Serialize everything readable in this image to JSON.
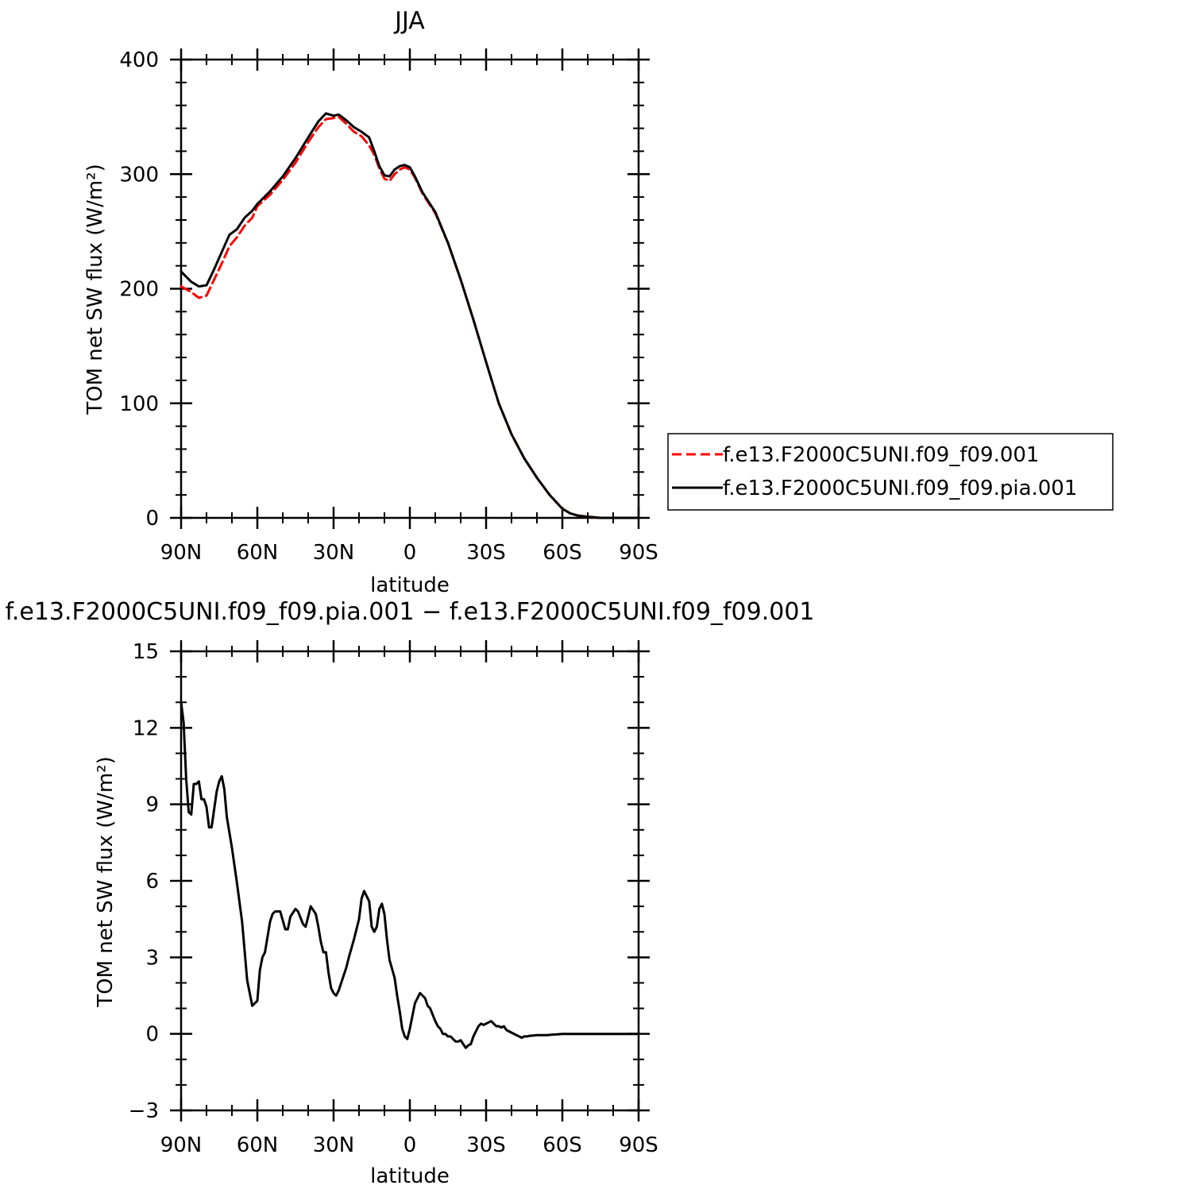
{
  "chart_data": [
    {
      "type": "line",
      "title": "JJA",
      "xlabel": "latitude",
      "ylabel": "TOM net SW flux (W/m²)",
      "x_ticks": [
        "90N",
        "60N",
        "30N",
        "0",
        "30S",
        "60S",
        "90S"
      ],
      "x_tick_values": [
        90,
        60,
        30,
        0,
        -30,
        -60,
        -90
      ],
      "xlim": [
        90,
        -90
      ],
      "ylim": [
        0,
        400
      ],
      "y_ticks": [
        "0",
        "100",
        "200",
        "300",
        "400"
      ],
      "y_tick_values": [
        0,
        100,
        200,
        300,
        400
      ],
      "legend_position": "right",
      "series": [
        {
          "name": "f.e13.F2000C5UNI.f09_f09.001",
          "color": "#ff0000",
          "dash": "dashed",
          "x": [
            90,
            86,
            83,
            80,
            77,
            74,
            71,
            68,
            65,
            62,
            60,
            55,
            50,
            45,
            40,
            36,
            33,
            30,
            28,
            25,
            22,
            19,
            16,
            14,
            12,
            10,
            8,
            6,
            4,
            2,
            0,
            -2,
            -5,
            -10,
            -15,
            -20,
            -25,
            -30,
            -35,
            -40,
            -45,
            -50,
            -55,
            -60,
            -63,
            -66,
            -70,
            -75,
            -80,
            -90
          ],
          "y": [
            202,
            197,
            192,
            194,
            208,
            222,
            237,
            245,
            255,
            262,
            272,
            282,
            295,
            310,
            328,
            341,
            348,
            349,
            350,
            344,
            337,
            333,
            325,
            317,
            305,
            296,
            294,
            300,
            304,
            306,
            304,
            297,
            283,
            266,
            240,
            208,
            173,
            136,
            100,
            73,
            52,
            35,
            20,
            8,
            4,
            2,
            1,
            0,
            0,
            0
          ]
        },
        {
          "name": "f.e13.F2000C5UNI.f09_f09.pia.001",
          "color": "#000000",
          "dash": "solid",
          "x": [
            90,
            86,
            83,
            80,
            77,
            74,
            71,
            68,
            65,
            62,
            60,
            55,
            50,
            45,
            40,
            36,
            33,
            30,
            28,
            25,
            22,
            19,
            16,
            14,
            12,
            10,
            8,
            6,
            4,
            2,
            0,
            -2,
            -5,
            -10,
            -15,
            -20,
            -25,
            -30,
            -35,
            -40,
            -45,
            -50,
            -55,
            -60,
            -63,
            -66,
            -70,
            -75,
            -80,
            -90
          ],
          "y": [
            215,
            206,
            202,
            203,
            217,
            232,
            247,
            252,
            262,
            268,
            274,
            285,
            298,
            314,
            332,
            346,
            353,
            351,
            352,
            347,
            341,
            337,
            332,
            320,
            307,
            299,
            298,
            304,
            307,
            308,
            306,
            298,
            284,
            267,
            240,
            208,
            173,
            136,
            100,
            73,
            52,
            35,
            20,
            8,
            4,
            2,
            1,
            0,
            0,
            0
          ]
        }
      ]
    },
    {
      "type": "line",
      "title": "f.e13.F2000C5UNI.f09_f09.pia.001 − f.e13.F2000C5UNI.f09_f09.001",
      "xlabel": "latitude",
      "ylabel": "TOM net SW flux (W/m²)",
      "x_ticks": [
        "90N",
        "60N",
        "30N",
        "0",
        "30S",
        "60S",
        "90S"
      ],
      "x_tick_values": [
        90,
        60,
        30,
        0,
        -30,
        -60,
        -90
      ],
      "xlim": [
        90,
        -90
      ],
      "ylim": [
        -3,
        15
      ],
      "y_ticks": [
        "−3",
        "0",
        "3",
        "6",
        "9",
        "12",
        "15"
      ],
      "y_tick_values": [
        -3,
        0,
        3,
        6,
        9,
        12,
        15
      ],
      "series": [
        {
          "color": "#000000",
          "x": [
            90,
            89,
            88,
            87,
            86,
            85,
            84,
            83,
            82,
            81,
            80,
            79,
            78,
            77,
            76,
            75,
            74,
            73,
            72,
            71,
            70,
            68,
            66,
            64,
            62,
            60,
            59,
            58,
            57,
            56,
            55,
            54,
            53,
            51,
            49,
            48,
            47,
            45,
            44,
            42,
            41,
            39,
            37,
            36,
            35,
            34,
            33,
            32,
            31,
            30,
            29,
            28,
            27,
            26,
            25,
            24,
            22,
            20,
            19,
            18,
            16,
            15,
            14,
            13,
            12,
            11,
            10,
            9,
            8,
            6,
            5,
            4,
            3,
            2,
            1,
            0,
            -1,
            -2,
            -3,
            -4,
            -5,
            -6,
            -7,
            -8,
            -10,
            -11,
            -12,
            -13,
            -14,
            -15,
            -16,
            -17,
            -18,
            -19,
            -20,
            -21,
            -22,
            -23,
            -24,
            -25,
            -26,
            -27,
            -28,
            -29,
            -30,
            -31,
            -32,
            -33,
            -34,
            -35,
            -36,
            -37,
            -38,
            -39,
            -40,
            -41,
            -42,
            -43,
            -44,
            -45,
            -46,
            -47,
            -48,
            -49,
            -50,
            -52,
            -54,
            -56,
            -58,
            -60,
            -63,
            -66,
            -70,
            -75,
            -80,
            -85,
            -90
          ],
          "y": [
            13.0,
            12.2,
            10.0,
            8.7,
            8.6,
            9.8,
            9.8,
            9.9,
            9.2,
            9.2,
            8.9,
            8.1,
            8.1,
            8.8,
            9.5,
            9.9,
            10.1,
            9.6,
            8.5,
            7.9,
            7.3,
            5.9,
            4.4,
            2.1,
            1.1,
            1.3,
            2.5,
            3.0,
            3.2,
            3.8,
            4.4,
            4.7,
            4.8,
            4.8,
            4.1,
            4.1,
            4.6,
            4.9,
            4.8,
            4.3,
            4.2,
            5.0,
            4.7,
            4.2,
            3.6,
            3.2,
            3.2,
            2.4,
            1.8,
            1.6,
            1.5,
            1.7,
            2.0,
            2.3,
            2.6,
            3.0,
            3.7,
            4.5,
            5.3,
            5.6,
            5.2,
            4.2,
            4.0,
            4.2,
            4.9,
            5.1,
            4.7,
            3.7,
            2.9,
            2.2,
            1.5,
            0.9,
            0.2,
            -0.1,
            -0.2,
            0.2,
            0.7,
            1.2,
            1.4,
            1.6,
            1.5,
            1.4,
            1.1,
            1.0,
            0.5,
            0.3,
            0.2,
            0.0,
            0.0,
            -0.1,
            -0.1,
            -0.2,
            -0.3,
            -0.3,
            -0.25,
            -0.4,
            -0.55,
            -0.45,
            -0.4,
            -0.1,
            0.1,
            0.3,
            0.4,
            0.35,
            0.4,
            0.45,
            0.5,
            0.4,
            0.3,
            0.3,
            0.25,
            0.3,
            0.15,
            0.1,
            0.05,
            0.0,
            -0.05,
            -0.1,
            -0.15,
            -0.1,
            -0.1,
            -0.08,
            -0.07,
            -0.06,
            -0.05,
            -0.05,
            -0.05,
            -0.03,
            -0.02,
            0.0,
            0.0,
            0.0,
            0.0,
            0.0,
            0.0,
            0.0,
            0.0
          ]
        }
      ]
    }
  ]
}
